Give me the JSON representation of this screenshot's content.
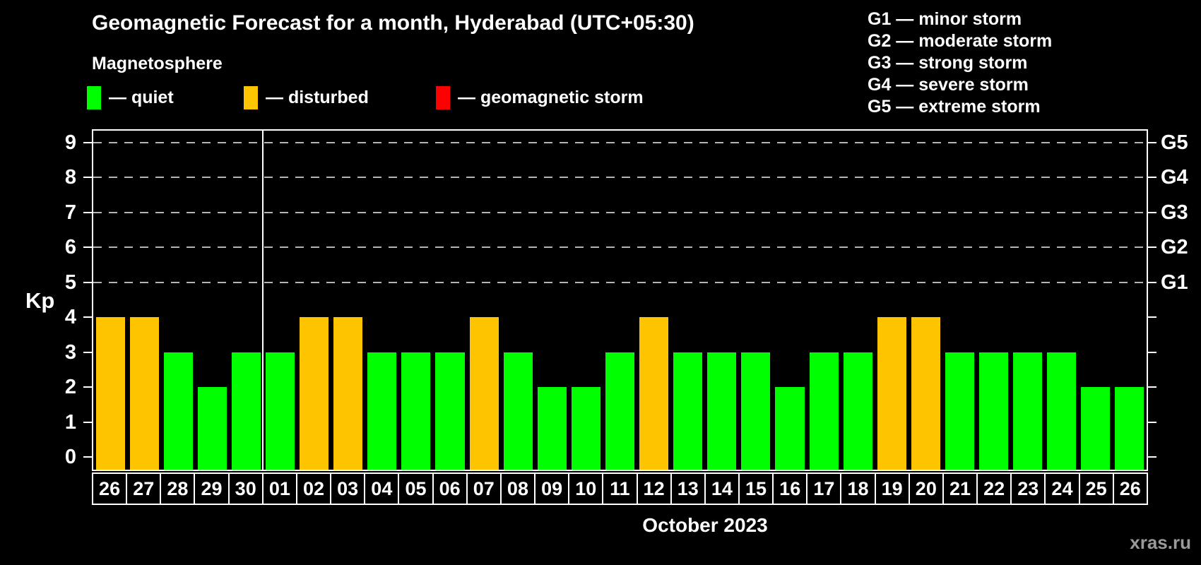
{
  "title": "Geomagnetic Forecast for a month, Hyderabad (UTC+05:30)",
  "subtitle": "Magnetosphere",
  "kp_legend": {
    "items": [
      {
        "name": "quiet",
        "label": "— quiet",
        "color": "#00ff00"
      },
      {
        "name": "disturbed",
        "label": "— disturbed",
        "color": "#ffc400"
      },
      {
        "name": "geomagnetic-storm",
        "label": "— geomagnetic storm",
        "color": "#ff0000"
      }
    ]
  },
  "storm_scale": [
    "G1 — minor storm",
    "G2 — moderate storm",
    "G3 — strong storm",
    "G4 — severe storm",
    "G5 — extreme storm"
  ],
  "chart_data": {
    "type": "bar",
    "title": "Geomagnetic Forecast for a month, Hyderabad (UTC+05:30)",
    "ylabel": "Kp",
    "xlabel": "October 2023",
    "ylim": [
      0,
      9
    ],
    "yticks": [
      0,
      1,
      2,
      3,
      4,
      5,
      6,
      7,
      8,
      9
    ],
    "grid": "dashed-horizontal",
    "grid_levels": [
      5,
      6,
      7,
      8,
      9
    ],
    "right_axis": [
      {
        "label": "G1",
        "kp": 5
      },
      {
        "label": "G2",
        "kp": 6
      },
      {
        "label": "G3",
        "kp": 7
      },
      {
        "label": "G4",
        "kp": 8
      },
      {
        "label": "G5",
        "kp": 9
      }
    ],
    "categories": [
      "26",
      "27",
      "28",
      "29",
      "30",
      "01",
      "02",
      "03",
      "04",
      "05",
      "06",
      "07",
      "08",
      "09",
      "10",
      "11",
      "12",
      "13",
      "14",
      "15",
      "16",
      "17",
      "18",
      "19",
      "20",
      "21",
      "22",
      "23",
      "24",
      "25",
      "26"
    ],
    "values": [
      4,
      4,
      3,
      2,
      3,
      3,
      4,
      4,
      3,
      3,
      3,
      4,
      3,
      2,
      2,
      3,
      4,
      3,
      3,
      3,
      2,
      3,
      3,
      4,
      4,
      3,
      3,
      3,
      3,
      2,
      2
    ],
    "statuses": [
      "disturbed",
      "disturbed",
      "quiet",
      "quiet",
      "quiet",
      "quiet",
      "disturbed",
      "disturbed",
      "quiet",
      "quiet",
      "quiet",
      "disturbed",
      "quiet",
      "quiet",
      "quiet",
      "quiet",
      "disturbed",
      "quiet",
      "quiet",
      "quiet",
      "quiet",
      "quiet",
      "quiet",
      "disturbed",
      "disturbed",
      "quiet",
      "quiet",
      "quiet",
      "quiet",
      "quiet",
      "quiet"
    ],
    "month_separator_after_index": 4,
    "bar_colors": {
      "quiet": "#00ff00",
      "disturbed": "#ffc400",
      "storm": "#ff0000"
    },
    "legend_position": "top-left"
  },
  "footer": {
    "month_label": "October 2023",
    "watermark": "xras.ru"
  }
}
